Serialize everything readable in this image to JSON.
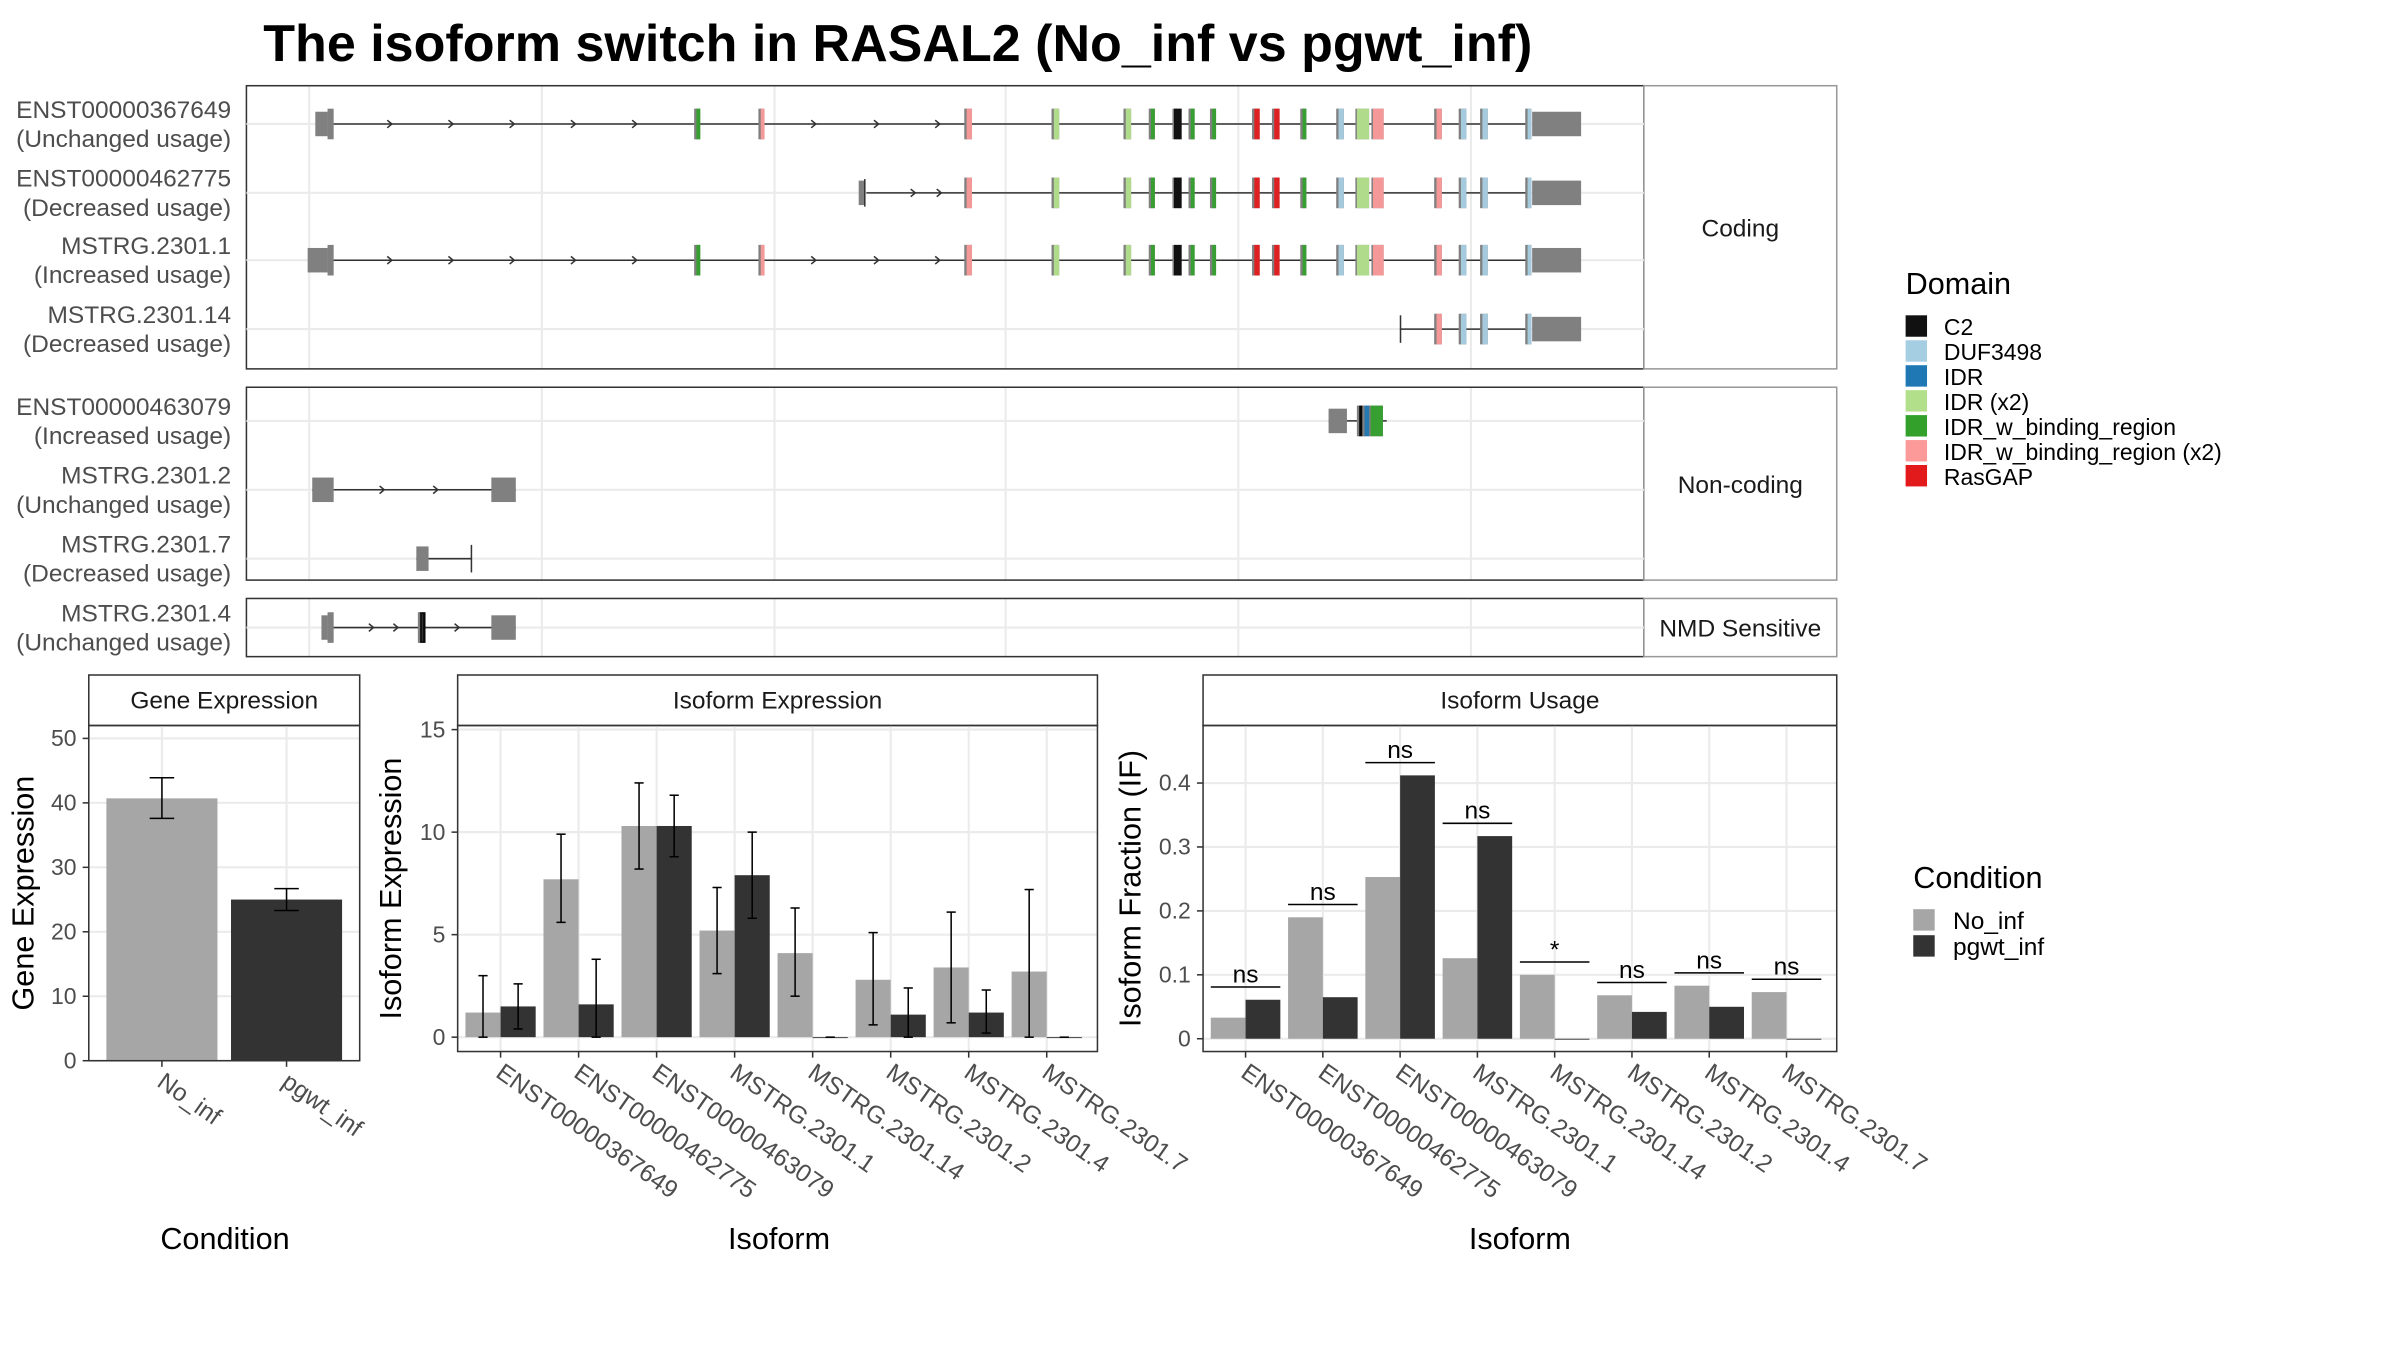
{
  "title": "The isoform switch in RASAL2 (No_inf vs pgwt_inf)",
  "colors": {
    "no_inf": "#a6a6a6",
    "pgwt_inf": "#333333",
    "intron": "#333333",
    "exon_plain": "#808080",
    "panel_border": "#333333",
    "strip_border": "#999999",
    "grid": "#ebebeb"
  },
  "transcript_panel": {
    "facets": [
      "Coding",
      "Non-coding",
      "NMD Sensitive"
    ],
    "transcripts": [
      {
        "facet": 0,
        "id": "ENST00000367649",
        "usage": "(Unchanged usage)"
      },
      {
        "facet": 0,
        "id": "ENST00000462775",
        "usage": "(Decreased usage)"
      },
      {
        "facet": 0,
        "id": "MSTRG.2301.1",
        "usage": "(Increased usage)"
      },
      {
        "facet": 0,
        "id": "MSTRG.2301.14",
        "usage": "(Decreased usage)"
      },
      {
        "facet": 1,
        "id": "ENST00000463079",
        "usage": "(Increased usage)"
      },
      {
        "facet": 1,
        "id": "MSTRG.2301.2",
        "usage": "(Unchanged usage)"
      },
      {
        "facet": 1,
        "id": "MSTRG.2301.7",
        "usage": "(Decreased usage)"
      },
      {
        "facet": 2,
        "id": "MSTRG.2301.4",
        "usage": "(Unchanged usage)"
      }
    ]
  },
  "domain_legend": {
    "title": "Domain",
    "items": [
      {
        "label": "C2",
        "color": "#111111"
      },
      {
        "label": "DUF3498",
        "color": "#a6cee3"
      },
      {
        "label": "IDR",
        "color": "#1f78b4"
      },
      {
        "label": "IDR (x2)",
        "color": "#b2df8a"
      },
      {
        "label": "IDR_w_binding_region",
        "color": "#33a02c"
      },
      {
        "label": "IDR_w_binding_region (x2)",
        "color": "#fb9a99"
      },
      {
        "label": "RasGAP",
        "color": "#e31a1c"
      }
    ]
  },
  "condition_legend": {
    "title": "Condition",
    "items": [
      {
        "label": "No_inf",
        "color": "#a6a6a6"
      },
      {
        "label": "pgwt_inf",
        "color": "#333333"
      }
    ]
  },
  "chart_data": [
    {
      "type": "bar",
      "title": "Gene Expression",
      "xlabel": "Condition",
      "ylabel": "Gene Expression",
      "categories": [
        "No_inf",
        "pgwt_inf"
      ],
      "values": [
        40.7,
        25.0
      ],
      "error_low": [
        37.6,
        23.3
      ],
      "error_high": [
        43.9,
        26.7
      ],
      "ylim": [
        0,
        52
      ],
      "yticks": [
        0,
        10,
        20,
        30,
        40,
        50
      ],
      "grid": true
    },
    {
      "type": "bar",
      "title": "Isoform Expression",
      "xlabel": "Isoform",
      "ylabel": "Isoform Expression",
      "categories": [
        "ENST00000367649",
        "ENST00000462775",
        "ENST00000463079",
        "MSTRG.2301.1",
        "MSTRG.2301.14",
        "MSTRG.2301.2",
        "MSTRG.2301.4",
        "MSTRG.2301.7"
      ],
      "series": [
        {
          "name": "No_inf",
          "values": [
            1.2,
            7.7,
            10.3,
            5.2,
            4.1,
            2.8,
            3.4,
            3.2
          ],
          "error_low": [
            0,
            5.6,
            8.2,
            3.1,
            2.0,
            0.6,
            0.7,
            0
          ],
          "error_high": [
            3.0,
            9.9,
            12.4,
            7.3,
            6.3,
            5.1,
            6.1,
            7.2
          ]
        },
        {
          "name": "pgwt_inf",
          "values": [
            1.5,
            1.6,
            10.3,
            7.9,
            0.0,
            1.1,
            1.2,
            0.0
          ],
          "error_low": [
            0.4,
            0,
            8.8,
            5.8,
            0,
            0,
            0.2,
            0
          ],
          "error_high": [
            2.6,
            3.8,
            11.8,
            10.0,
            0,
            2.4,
            2.3,
            0
          ]
        }
      ],
      "ylim": [
        -0.7,
        15.2
      ],
      "yticks": [
        0,
        5,
        10,
        15
      ],
      "grid": true
    },
    {
      "type": "bar",
      "title": "Isoform Usage",
      "xlabel": "Isoform",
      "ylabel": "Isoform Fraction (IF)",
      "categories": [
        "ENST00000367649",
        "ENST00000462775",
        "ENST00000463079",
        "MSTRG.2301.1",
        "MSTRG.2301.14",
        "MSTRG.2301.2",
        "MSTRG.2301.4",
        "MSTRG.2301.7"
      ],
      "series": [
        {
          "name": "No_inf",
          "values": [
            0.033,
            0.19,
            0.253,
            0.126,
            0.1,
            0.068,
            0.083,
            0.073
          ]
        },
        {
          "name": "pgwt_inf",
          "values": [
            0.061,
            0.065,
            0.412,
            0.317,
            0.0,
            0.042,
            0.05,
            0.0
          ]
        }
      ],
      "significance": [
        "ns",
        "ns",
        "ns",
        "ns",
        "*",
        "ns",
        "ns",
        "ns"
      ],
      "ylim": [
        -0.02,
        0.49
      ],
      "yticks": [
        0.0,
        0.1,
        0.2,
        0.3,
        0.4
      ],
      "grid": true
    }
  ]
}
